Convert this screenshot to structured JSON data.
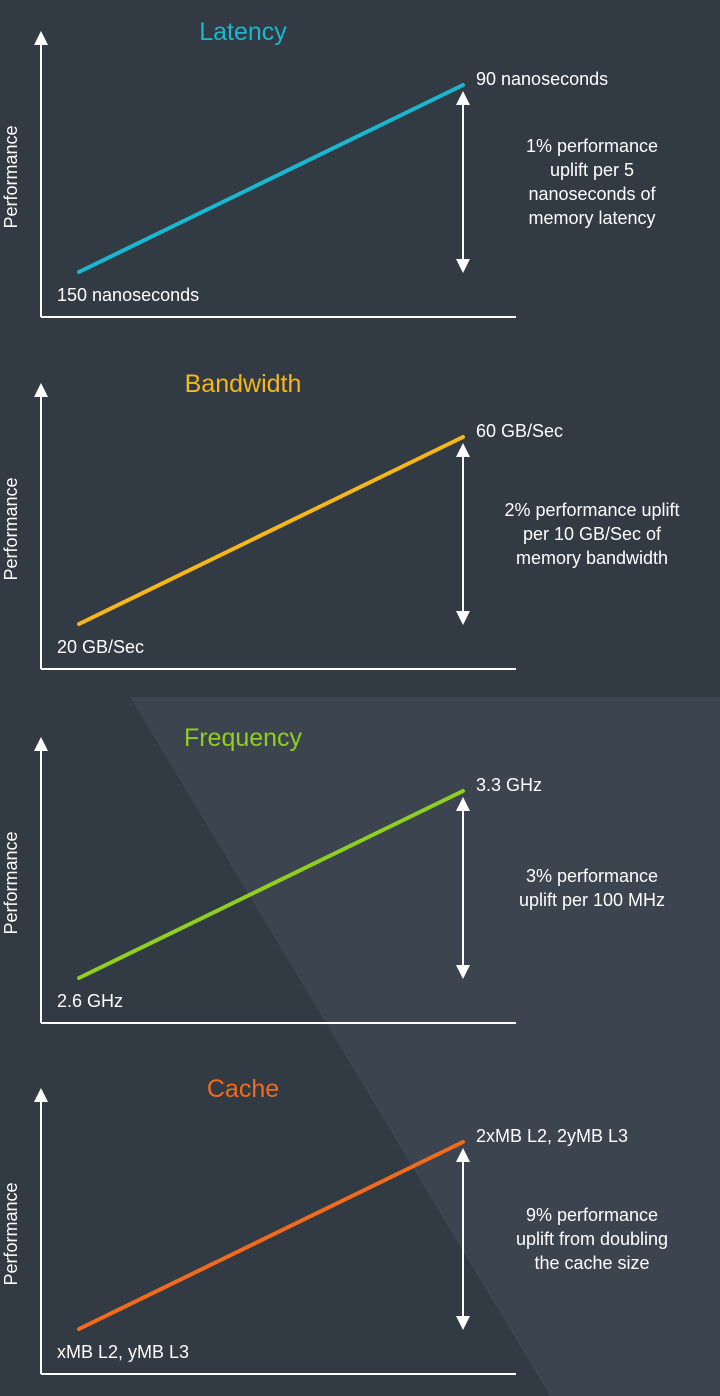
{
  "chart_data": [
    {
      "type": "line",
      "title": "Latency",
      "ylabel": "Performance",
      "start_label": "150 nanoseconds",
      "end_label": "90 nanoseconds",
      "note_lines": [
        "1% performance",
        "uplift per 5",
        "nanoseconds of",
        "memory latency"
      ],
      "color": "#1ab7d0"
    },
    {
      "type": "line",
      "title": "Bandwidth",
      "ylabel": "Performance",
      "start_label": "20 GB/Sec",
      "end_label": "60 GB/Sec",
      "note_lines": [
        "2% performance uplift",
        "per 10 GB/Sec of",
        "memory bandwidth"
      ],
      "color": "#f5b71a"
    },
    {
      "type": "line",
      "title": "Frequency",
      "ylabel": "Performance",
      "start_label": "2.6 GHz",
      "end_label": "3.3 GHz",
      "note_lines": [
        "3% performance",
        "uplift per 100 MHz"
      ],
      "color": "#8fcf1f"
    },
    {
      "type": "line",
      "title": "Cache",
      "ylabel": "Performance",
      "start_label": "xMB L2, yMB L3",
      "end_label": "2xMB L2, 2yMB L3",
      "note_lines": [
        "9% performance",
        "uplift from doubling",
        "the cache size"
      ],
      "color": "#f26a1b"
    }
  ]
}
